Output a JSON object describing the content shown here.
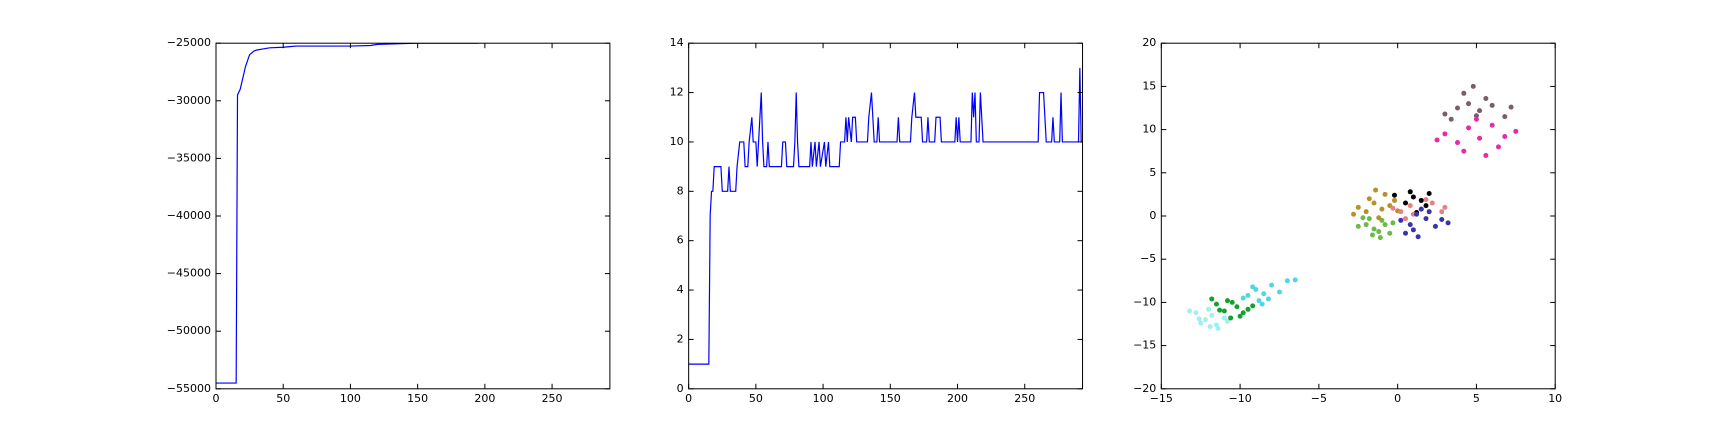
{
  "chart_data": [
    {
      "type": "line",
      "xlim": [
        0,
        293
      ],
      "xticks": [
        0,
        50,
        100,
        150,
        200,
        250
      ],
      "ylim": [
        -55000,
        -25000
      ],
      "yticks": [
        {
          "value": -55000,
          "label": "−55000"
        },
        {
          "value": -50000,
          "label": "−50000"
        },
        {
          "value": -45000,
          "label": "−45000"
        },
        {
          "value": -40000,
          "label": "−40000"
        },
        {
          "value": -35000,
          "label": "−35000"
        },
        {
          "value": -30000,
          "label": "−30000"
        },
        {
          "value": -25000,
          "label": "−25000"
        }
      ],
      "x": [
        0,
        15,
        16,
        18,
        20,
        22,
        25,
        28,
        30,
        35,
        40,
        50,
        55,
        60,
        100,
        115,
        120,
        150,
        195
      ],
      "series": [
        {
          "color": "#0000ff",
          "values": [
            -54500,
            -54500,
            -29500,
            -29000,
            -28000,
            -27000,
            -26000,
            -25700,
            -25600,
            -25500,
            -25400,
            -25350,
            -25300,
            -25250,
            -25250,
            -25200,
            -25100,
            -25000,
            -25000
          ]
        }
      ]
    },
    {
      "type": "line",
      "xlim": [
        0,
        293
      ],
      "xticks": [
        0,
        50,
        100,
        150,
        200,
        250
      ],
      "ylim": [
        0,
        14
      ],
      "yticks": [
        0,
        2,
        4,
        6,
        8,
        10,
        12,
        14
      ],
      "x": [
        0,
        15,
        16,
        17,
        18,
        19,
        24,
        25,
        29,
        30,
        31,
        35,
        36,
        38,
        41,
        42,
        44,
        45,
        47,
        48,
        50,
        51,
        52,
        54,
        55,
        56,
        58,
        59,
        60,
        69,
        70,
        72,
        73,
        78,
        79,
        80,
        81,
        82,
        90,
        91,
        92,
        94,
        95,
        97,
        98,
        101,
        102,
        104,
        105,
        112,
        113,
        116,
        117,
        118,
        119,
        121,
        122,
        124,
        125,
        133,
        134,
        136,
        137,
        138,
        140,
        141,
        142,
        155,
        156,
        157,
        165,
        166,
        168,
        169,
        173,
        174,
        177,
        178,
        179,
        183,
        184,
        187,
        188,
        198,
        199,
        200,
        201,
        202,
        210,
        211,
        212,
        213,
        214,
        216,
        217,
        218,
        219,
        260,
        261,
        264,
        265,
        266,
        270,
        271,
        272,
        276,
        277,
        278,
        290,
        291,
        292,
        293
      ],
      "series": [
        {
          "color": "#0000ff",
          "values": [
            1,
            1,
            7,
            8,
            8,
            9,
            9,
            8,
            8,
            9,
            8,
            8,
            9,
            10,
            10,
            9,
            9,
            10,
            11,
            10,
            10,
            9,
            10,
            12,
            10,
            9,
            9,
            10,
            9,
            9,
            10,
            10,
            9,
            9,
            10,
            12,
            10,
            9,
            9,
            10,
            9,
            10,
            9,
            10,
            9,
            10,
            9,
            10,
            9,
            9,
            10,
            10,
            11,
            10,
            11,
            10,
            11,
            11,
            10,
            10,
            11,
            12,
            11,
            10,
            10,
            11,
            10,
            10,
            11,
            10,
            10,
            11,
            12,
            11,
            11,
            10,
            10,
            11,
            10,
            10,
            11,
            11,
            10,
            10,
            11,
            10,
            11,
            10,
            10,
            12,
            11,
            12,
            10,
            10,
            12,
            11,
            10,
            10,
            12,
            12,
            11,
            10,
            10,
            11,
            10,
            10,
            12,
            10,
            10,
            13,
            10,
            10
          ]
        }
      ]
    },
    {
      "type": "scatter",
      "xlim": [
        -15,
        10
      ],
      "xticks": [
        {
          "value": -15,
          "label": "−15"
        },
        {
          "value": -10,
          "label": "−10"
        },
        {
          "value": -5,
          "label": "−5"
        },
        0,
        5,
        10
      ],
      "ylim": [
        -20,
        20
      ],
      "yticks": [
        {
          "value": -20,
          "label": "−20"
        },
        {
          "value": -15,
          "label": "−15"
        },
        {
          "value": -10,
          "label": "−10"
        },
        {
          "value": -5,
          "label": "−5"
        },
        0,
        5,
        10,
        15,
        20
      ],
      "series": [
        {
          "color": "#a0f0ee",
          "x": [
            -12.8,
            -12.2,
            -11.8,
            -11.5,
            -12.5,
            -11.0,
            -12.0,
            -13.2,
            -11.4,
            -12.6,
            -10.8,
            -11.9
          ],
          "values": [
            -11.2,
            -12.0,
            -11.5,
            -12.6,
            -12.4,
            -11.8,
            -10.8,
            -11.0,
            -13.0,
            -11.9,
            -12.2,
            -12.8
          ]
        },
        {
          "color": "#16a030",
          "x": [
            -11.5,
            -10.8,
            -10.2,
            -9.8,
            -11.0,
            -10.5,
            -9.5,
            -11.8,
            -10.0,
            -9.2,
            -10.6,
            -11.3
          ],
          "values": [
            -10.2,
            -9.8,
            -10.5,
            -11.2,
            -11.0,
            -10.0,
            -10.8,
            -9.6,
            -11.6,
            -10.4,
            -11.8,
            -10.9
          ]
        },
        {
          "color": "#50d8e2",
          "x": [
            -9.5,
            -9.0,
            -8.5,
            -8.0,
            -7.5,
            -8.8,
            -9.8,
            -7.0,
            -8.2,
            -9.2,
            -6.5,
            -8.6
          ],
          "values": [
            -9.2,
            -8.5,
            -9.0,
            -8.0,
            -8.8,
            -9.8,
            -9.5,
            -7.5,
            -9.6,
            -8.2,
            -7.4,
            -10.2
          ]
        },
        {
          "color": "#6abb48",
          "x": [
            -2.0,
            -1.5,
            -1.0,
            -0.5,
            -1.8,
            -1.2,
            -2.5,
            -0.8,
            -1.6,
            -0.3,
            -2.2,
            -1.1
          ],
          "values": [
            -1.0,
            -1.5,
            -0.5,
            -2.0,
            -0.3,
            -1.8,
            -1.2,
            -1.0,
            -2.2,
            -0.8,
            -0.2,
            -2.5
          ]
        },
        {
          "color": "#b8902a",
          "x": [
            -2.5,
            -2.0,
            -1.5,
            -1.0,
            -0.5,
            0,
            -1.8,
            -1.2,
            -0.8,
            -2.8,
            -0.2,
            -1.4
          ],
          "values": [
            1.0,
            0.5,
            1.5,
            0.8,
            1.2,
            0.6,
            2.0,
            -0.2,
            2.5,
            0.2,
            1.8,
            3.0
          ]
        },
        {
          "color": "#000000",
          "x": [
            0.5,
            1.0,
            1.5,
            2.0,
            0.8,
            1.8,
            -0.2,
            1.2
          ],
          "values": [
            1.5,
            2.2,
            1.8,
            2.6,
            2.8,
            1.2,
            2.4,
            0.4
          ]
        },
        {
          "color": "#e88080",
          "x": [
            0.2,
            0.8,
            1.5,
            2.2,
            1.0,
            2.8,
            0.5,
            1.8,
            3.0,
            -0.3
          ],
          "values": [
            0.5,
            1.2,
            0.8,
            1.5,
            0.2,
            0.5,
            -0.3,
            1.9,
            1.0,
            0.9
          ]
        },
        {
          "color": "#3a33b0",
          "x": [
            0.2,
            0.8,
            1.2,
            1.8,
            2.4,
            1.0,
            1.5,
            2.8,
            0.5,
            2.0,
            1.3,
            3.2
          ],
          "values": [
            -0.5,
            -1.0,
            0.2,
            -0.3,
            -1.2,
            -1.6,
            0.8,
            -0.4,
            -2.0,
            0.5,
            -2.4,
            -0.8
          ]
        },
        {
          "color": "#7c5c68",
          "x": [
            3.0,
            3.8,
            4.5,
            5.2,
            6.0,
            6.8,
            4.2,
            5.6,
            3.4,
            4.8,
            7.2,
            5.0
          ],
          "values": [
            11.8,
            12.5,
            13.0,
            12.2,
            12.8,
            11.5,
            14.2,
            13.6,
            11.2,
            15.0,
            12.6,
            11.6
          ]
        },
        {
          "color": "#e82aa6",
          "x": [
            3.0,
            3.8,
            4.5,
            5.2,
            6.0,
            6.8,
            4.2,
            5.6,
            7.5,
            2.5,
            5.0,
            6.4
          ],
          "values": [
            9.5,
            8.5,
            10.2,
            9.0,
            10.5,
            9.2,
            7.5,
            7.0,
            9.8,
            8.8,
            11.2,
            8.0
          ]
        }
      ]
    }
  ]
}
